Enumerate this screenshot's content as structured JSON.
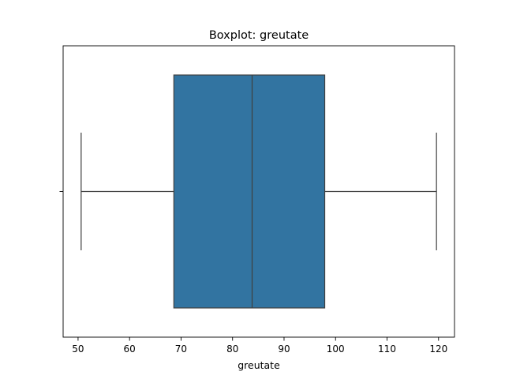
{
  "chart_data": {
    "type": "boxplot",
    "title": "Boxplot: greutate",
    "xlabel": "greutate",
    "ylabel": "",
    "orientation": "horizontal",
    "xlim": [
      47.1,
      123.1
    ],
    "x_ticks": [
      50,
      60,
      70,
      80,
      90,
      100,
      110,
      120
    ],
    "x_tick_labels": [
      "50",
      "60",
      "70",
      "80",
      "90",
      "100",
      "110",
      "120"
    ],
    "grid": false,
    "legend": "none",
    "series": [
      {
        "min": 50.6,
        "q1": 68.6,
        "median": 83.8,
        "q3": 97.9,
        "max": 119.6,
        "outliers": []
      }
    ],
    "colors": {
      "box_fill": "#3274a1",
      "line": "#3f3f3f",
      "axes": "#000000",
      "background": "#ffffff"
    }
  }
}
